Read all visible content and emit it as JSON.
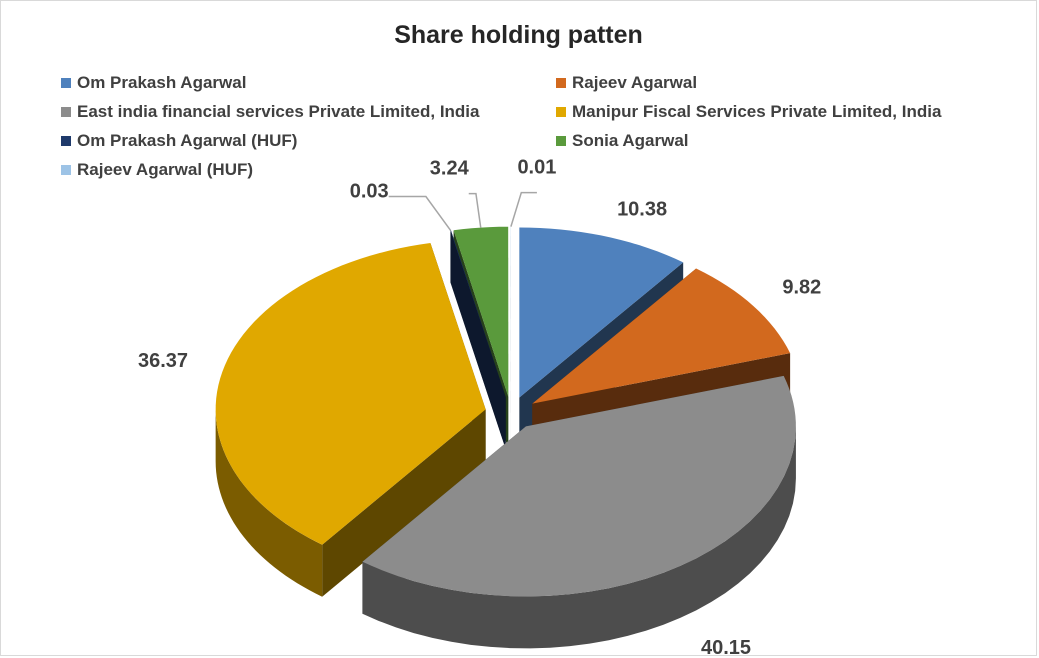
{
  "chart_data": {
    "type": "pie",
    "title": "Share holding patten",
    "series": [
      {
        "name": "Om Prakash Agarwal",
        "value": 10.38,
        "color": "#4f81bd",
        "label": "10.38"
      },
      {
        "name": "Rajeev Agarwal",
        "value": 9.82,
        "color": "#d2691e",
        "label": "9.82"
      },
      {
        "name": "East india financial services Private Limited, India",
        "value": 40.15,
        "color": "#8c8c8c",
        "label": "40.15"
      },
      {
        "name": "Manipur Fiscal Services Private Limited, India",
        "value": 36.37,
        "color": "#e0a800",
        "label": "36.37"
      },
      {
        "name": "Om Prakash Agarwal (HUF)",
        "value": 0.03,
        "color": "#1f3a6b",
        "label": "0.03"
      },
      {
        "name": "Sonia Agarwal",
        "value": 3.24,
        "color": "#5a9a3c",
        "label": "3.24"
      },
      {
        "name": "Rajeev Agarwal (HUF)",
        "value": 0.01,
        "color": "#9dc3e6",
        "label": "0.01"
      }
    ],
    "legend_position": "top",
    "exploded": true,
    "three_d": true
  }
}
